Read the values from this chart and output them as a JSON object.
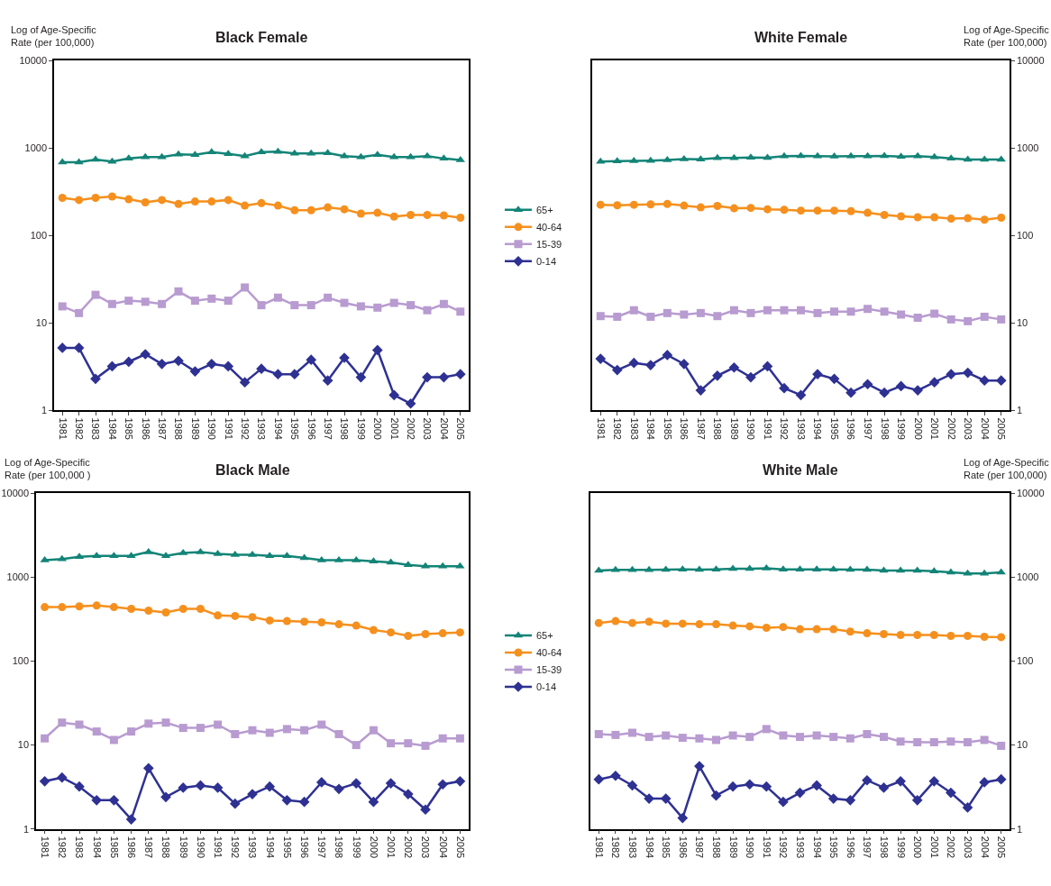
{
  "chart_data": [
    {
      "type": "line",
      "title": "Black Female",
      "ylabel": "Log of Age-Specific Rate (per 100,000)",
      "log": true,
      "ylim": [
        1,
        10000
      ],
      "yticks": [
        1,
        10,
        100,
        1000,
        10000
      ],
      "legend": "right",
      "line_style": "solid",
      "categories": [
        "1981",
        "1982",
        "1983",
        "1984",
        "1985",
        "1986",
        "1987",
        "1988",
        "1989",
        "1990",
        "1991",
        "1992",
        "1993",
        "1994",
        "1995",
        "1996",
        "1997",
        "1998",
        "1999",
        "2000",
        "2001",
        "2002",
        "2003",
        "2004",
        "2005"
      ],
      "series": [
        {
          "name": "65+",
          "color": "#138477",
          "marker": "triangle",
          "values": [
            690,
            690,
            740,
            700,
            760,
            790,
            790,
            850,
            840,
            900,
            860,
            810,
            900,
            910,
            870,
            870,
            880,
            810,
            790,
            840,
            790,
            790,
            810,
            760,
            730
          ]
        },
        {
          "name": "40-64",
          "color": "#f5901e",
          "marker": "circle",
          "values": [
            270,
            255,
            270,
            280,
            260,
            240,
            255,
            230,
            245,
            245,
            255,
            220,
            235,
            220,
            195,
            195,
            210,
            200,
            178,
            182,
            165,
            172,
            172,
            170,
            160
          ]
        },
        {
          "name": "15-39",
          "color": "#b89bd0",
          "marker": "square",
          "values": [
            15.5,
            13,
            21,
            16.5,
            18,
            17.5,
            16.5,
            23,
            18,
            19,
            18,
            25.5,
            16,
            19.5,
            16,
            16,
            19.5,
            17,
            15.5,
            15,
            17,
            16,
            14,
            16.5,
            13.5
          ]
        },
        {
          "name": "0-14",
          "color": "#2e3192",
          "marker": "diamond",
          "values": [
            5.2,
            5.2,
            2.3,
            3.2,
            3.6,
            4.4,
            3.4,
            3.7,
            2.8,
            3.4,
            3.2,
            2.1,
            3.0,
            2.6,
            2.6,
            3.8,
            2.2,
            4.0,
            2.4,
            4.9,
            1.5,
            1.2,
            2.4,
            2.4,
            2.6
          ]
        }
      ]
    },
    {
      "type": "line",
      "title": "White Female",
      "y2label": "Log of Age-Specific Rate (per 100,000)",
      "log": "y2",
      "y2lim": [
        1,
        10000
      ],
      "y2ticks": [
        1,
        10,
        100,
        1000,
        10000
      ],
      "line_style": "solid",
      "categories": [
        "1981",
        "1982",
        "1983",
        "1984",
        "1985",
        "1986",
        "1987",
        "1988",
        "1989",
        "1990",
        "1991",
        "1992",
        "1993",
        "1994",
        "1995",
        "1996",
        "1997",
        "1998",
        "1999",
        "2000",
        "2001",
        "2002",
        "2003",
        "2004",
        "2005"
      ],
      "series": [
        {
          "axis": "y2",
          "color": "#138477",
          "marker": "triangle",
          "values": [
            700,
            710,
            715,
            720,
            730,
            750,
            745,
            770,
            770,
            780,
            775,
            810,
            815,
            810,
            805,
            810,
            810,
            815,
            800,
            810,
            790,
            760,
            740,
            740,
            740
          ]
        },
        {
          "axis": "y2",
          "color": "#f5901e",
          "marker": "circle",
          "values": [
            225,
            222,
            225,
            227,
            230,
            220,
            210,
            218,
            205,
            207,
            200,
            197,
            193,
            193,
            193,
            190,
            182,
            172,
            166,
            162,
            162,
            156,
            158,
            152,
            160
          ]
        },
        {
          "axis": "y2",
          "color": "#b89bd0",
          "marker": "square",
          "values": [
            12,
            11.8,
            14,
            11.8,
            13,
            12.5,
            13,
            12,
            14,
            13,
            14,
            14,
            14,
            13,
            13.5,
            13.5,
            14.5,
            13.5,
            12.5,
            11.5,
            12.8,
            11,
            10.5,
            11.8,
            11
          ]
        },
        {
          "axis": "y2",
          "color": "#2e3192",
          "marker": "diamond",
          "values": [
            3.9,
            2.9,
            3.5,
            3.3,
            4.3,
            3.4,
            1.7,
            2.5,
            3.1,
            2.4,
            3.2,
            1.8,
            1.5,
            2.6,
            2.3,
            1.6,
            2.0,
            1.6,
            1.9,
            1.7,
            2.1,
            2.6,
            2.7,
            2.2,
            2.2
          ]
        }
      ]
    },
    {
      "type": "line",
      "title": "Black Male",
      "ylabel": "Log of Age-Specific Rate (per 100,000 )",
      "log": true,
      "ylim": [
        1,
        10000
      ],
      "yticks": [
        1,
        10,
        100,
        1000,
        10000
      ],
      "legend": "right",
      "line_style": "solid",
      "categories": [
        "1981",
        "1982",
        "1983",
        "1984",
        "1985",
        "1986",
        "1987",
        "1988",
        "1989",
        "1990",
        "1991",
        "1992",
        "1993",
        "1994",
        "1995",
        "1996",
        "1997",
        "1998",
        "1999",
        "2000",
        "2001",
        "2002",
        "2003",
        "2004",
        "2005"
      ],
      "series": [
        {
          "name": "65+",
          "color": "#138477",
          "marker": "triangle",
          "values": [
            1600,
            1650,
            1750,
            1800,
            1800,
            1800,
            2000,
            1800,
            1950,
            2000,
            1900,
            1850,
            1850,
            1800,
            1800,
            1700,
            1600,
            1600,
            1600,
            1550,
            1500,
            1400,
            1350,
            1350,
            1350
          ]
        },
        {
          "name": "40-64",
          "color": "#f5901e",
          "marker": "circle",
          "values": [
            440,
            440,
            450,
            460,
            440,
            420,
            400,
            380,
            420,
            420,
            350,
            345,
            335,
            305,
            300,
            295,
            290,
            275,
            265,
            235,
            220,
            200,
            210,
            215,
            220
          ]
        },
        {
          "name": "15-39",
          "color": "#b89bd0",
          "marker": "square",
          "values": [
            12,
            18.5,
            17.5,
            14.5,
            11.5,
            14.5,
            18,
            18.5,
            16,
            16,
            17.5,
            13.5,
            15,
            14,
            15.5,
            15,
            17.5,
            13.5,
            10,
            15,
            10.5,
            10.5,
            9.8,
            12,
            12
          ]
        },
        {
          "name": "0-14",
          "color": "#2e3192",
          "marker": "diamond",
          "values": [
            3.7,
            4.1,
            3.2,
            2.2,
            2.2,
            1.3,
            5.3,
            2.4,
            3.1,
            3.3,
            3.1,
            2.0,
            2.6,
            3.2,
            2.2,
            2.1,
            3.6,
            3.0,
            3.5,
            2.1,
            3.5,
            2.6,
            1.7,
            3.4,
            3.7
          ]
        }
      ]
    },
    {
      "type": "line",
      "title": "White Male",
      "y2label": "Log of Age-Specific Rate (per 100,000)",
      "log": "y2",
      "y2lim": [
        1,
        10000
      ],
      "y2ticks": [
        1,
        10,
        100,
        1000,
        10000
      ],
      "line_style": "solid",
      "categories": [
        "1981",
        "1982",
        "1983",
        "1984",
        "1985",
        "1986",
        "1987",
        "1988",
        "1989",
        "1990",
        "1991",
        "1992",
        "1993",
        "1994",
        "1995",
        "1996",
        "1997",
        "1998",
        "1999",
        "2000",
        "2001",
        "2002",
        "2003",
        "2004",
        "2005"
      ],
      "series": [
        {
          "axis": "y2",
          "color": "#138477",
          "marker": "triangle",
          "values": [
            1200,
            1220,
            1220,
            1220,
            1230,
            1240,
            1230,
            1240,
            1260,
            1260,
            1280,
            1240,
            1240,
            1240,
            1240,
            1230,
            1230,
            1200,
            1200,
            1200,
            1180,
            1140,
            1110,
            1110,
            1140
          ]
        },
        {
          "axis": "y2",
          "color": "#f5901e",
          "marker": "circle",
          "values": [
            285,
            300,
            285,
            295,
            280,
            280,
            275,
            275,
            265,
            260,
            250,
            255,
            240,
            240,
            240,
            225,
            215,
            210,
            205,
            205,
            205,
            200,
            200,
            195,
            193
          ]
        },
        {
          "axis": "y2",
          "color": "#b89bd0",
          "marker": "square",
          "values": [
            13.5,
            13.2,
            14,
            12.5,
            13,
            12.2,
            12,
            11.5,
            13,
            12.5,
            15.5,
            13,
            12.5,
            13,
            12.5,
            12,
            13.5,
            12.5,
            11,
            10.8,
            10.8,
            11,
            10.8,
            11.5,
            9.8
          ]
        },
        {
          "axis": "y2",
          "color": "#2e3192",
          "marker": "diamond",
          "values": [
            3.9,
            4.3,
            3.3,
            2.3,
            2.3,
            1.35,
            5.6,
            2.5,
            3.2,
            3.4,
            3.2,
            2.1,
            2.7,
            3.3,
            2.3,
            2.2,
            3.8,
            3.1,
            3.7,
            2.2,
            3.7,
            2.7,
            1.8,
            3.6,
            3.9
          ]
        }
      ]
    }
  ]
}
